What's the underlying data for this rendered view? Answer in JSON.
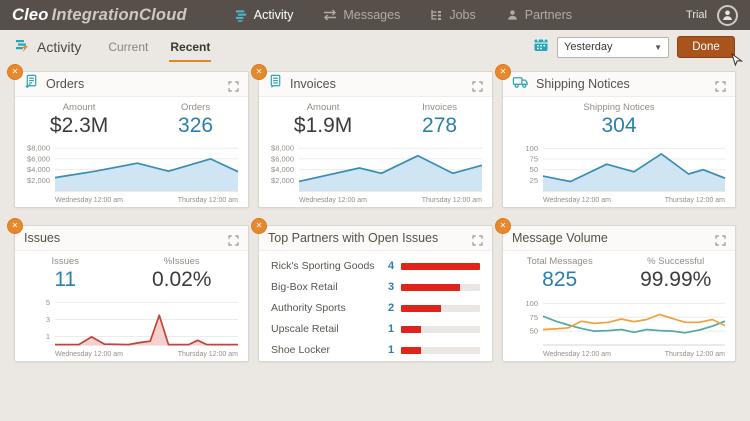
{
  "header": {
    "logo": {
      "brand": "Cleo",
      "product": "IntegrationCloud"
    },
    "nav": [
      {
        "label": "Activity",
        "icon": "activity-icon",
        "active": true
      },
      {
        "label": "Messages",
        "icon": "messages-icon",
        "active": false
      },
      {
        "label": "Jobs",
        "icon": "jobs-icon",
        "active": false
      },
      {
        "label": "Partners",
        "icon": "partners-icon",
        "active": false
      }
    ],
    "trial_label": "Trial"
  },
  "toolbar": {
    "title": "Activity",
    "tabs": [
      {
        "label": "Current",
        "active": false
      },
      {
        "label": "Recent",
        "active": true
      }
    ],
    "date_select": {
      "value": "Yesterday"
    },
    "done_label": "Done"
  },
  "colors": {
    "accent_orange": "#e8882d",
    "done_button": "#a9541c",
    "stat_blue": "#2b7fad",
    "chart_blue": "#3a8cb4",
    "chart_blue_fill": "#cfe5f3",
    "chart_red": "#c0443a",
    "chart_red_fill": "#f6d0cc",
    "bar_red": "#e02419",
    "line_teal": "#52aaa4",
    "line_orange": "#eba23f"
  },
  "cards": [
    {
      "title": "Orders",
      "icon": "orders-icon",
      "stats": [
        {
          "label": "Amount",
          "value": "$2.3M",
          "style": "dark"
        },
        {
          "label": "Orders",
          "value": "326",
          "style": "blue"
        }
      ]
    },
    {
      "title": "Invoices",
      "icon": "invoices-icon",
      "stats": [
        {
          "label": "Amount",
          "value": "$1.9M",
          "style": "dark"
        },
        {
          "label": "Invoices",
          "value": "278",
          "style": "blue"
        }
      ]
    },
    {
      "title": "Shipping Notices",
      "icon": "truck-icon",
      "stats": [
        {
          "label": "Shipping Notices",
          "value": "304",
          "style": "blue"
        }
      ]
    },
    {
      "title": "Issues",
      "stats": [
        {
          "label": "Issues",
          "value": "11",
          "style": "blue"
        },
        {
          "label": "%Issues",
          "value": "0.02%",
          "style": "dark"
        }
      ]
    },
    {
      "title": "Top Partners with Open Issues"
    },
    {
      "title": "Message Volume",
      "stats": [
        {
          "label": "Total Messages",
          "value": "825",
          "style": "blue"
        },
        {
          "label": "% Successful",
          "value": "99.99%",
          "style": "dark"
        }
      ]
    }
  ],
  "chart_data": [
    {
      "id": "orders-trend",
      "type": "area",
      "title": "Orders",
      "ylim": [
        0,
        8600
      ],
      "yticks": [
        {
          "v": 2000,
          "label": "$2,000"
        },
        {
          "v": 4000,
          "label": "$4,000"
        },
        {
          "v": 6000,
          "label": "$6,000"
        },
        {
          "v": 8000,
          "label": "$8,000"
        }
      ],
      "xlabels": [
        "Wednesday 12:00 am",
        "Thursday 12:00 am"
      ],
      "series": [
        {
          "color": "#3a8cb4",
          "fill": "#cfe5f3",
          "points": [
            [
              0,
              2500
            ],
            [
              0.22,
              3700
            ],
            [
              0.45,
              5200
            ],
            [
              0.62,
              3700
            ],
            [
              0.85,
              6000
            ],
            [
              1,
              3600
            ]
          ]
        }
      ]
    },
    {
      "id": "invoices-trend",
      "type": "area",
      "title": "Invoices",
      "ylim": [
        0,
        8600
      ],
      "yticks": [
        {
          "v": 2000,
          "label": "$2,000"
        },
        {
          "v": 4000,
          "label": "$4,000"
        },
        {
          "v": 6000,
          "label": "$6,000"
        },
        {
          "v": 8000,
          "label": "$8,000"
        }
      ],
      "xlabels": [
        "Wednesday 12:00 am",
        "Thursday 12:00 am"
      ],
      "series": [
        {
          "color": "#3a8cb4",
          "fill": "#cfe5f3",
          "points": [
            [
              0,
              1800
            ],
            [
              0.33,
              4300
            ],
            [
              0.45,
              3300
            ],
            [
              0.65,
              6600
            ],
            [
              0.84,
              3300
            ],
            [
              1,
              4800
            ]
          ]
        }
      ]
    },
    {
      "id": "shipping-trend",
      "type": "area",
      "title": "Shipping Notices",
      "ylim": [
        0,
        108
      ],
      "yticks": [
        {
          "v": 25,
          "label": "25"
        },
        {
          "v": 50,
          "label": "50"
        },
        {
          "v": 75,
          "label": "75"
        },
        {
          "v": 100,
          "label": "100"
        }
      ],
      "xlabels": [
        "Wednesday 12:00 am",
        "Thursday 12:00 am"
      ],
      "series": [
        {
          "color": "#3a8cb4",
          "fill": "#cfe5f3",
          "points": [
            [
              0,
              35
            ],
            [
              0.15,
              22
            ],
            [
              0.35,
              63
            ],
            [
              0.5,
              45
            ],
            [
              0.65,
              87
            ],
            [
              0.8,
              40
            ],
            [
              0.88,
              50
            ],
            [
              1,
              30
            ]
          ]
        }
      ]
    },
    {
      "id": "issues-trend",
      "type": "area",
      "title": "Issues",
      "ylim": [
        0,
        5.4
      ],
      "yticks": [
        {
          "v": 1,
          "label": "1"
        },
        {
          "v": 3,
          "label": "3"
        },
        {
          "v": 5,
          "label": "5"
        }
      ],
      "xlabels": [
        "Wednesday 12:00 am",
        "Thursday 12:00 am"
      ],
      "series": [
        {
          "color": "#c0443a",
          "fill": "#f6d0cc",
          "points": [
            [
              0,
              0.05
            ],
            [
              0.13,
              0.05
            ],
            [
              0.2,
              0.95
            ],
            [
              0.27,
              0.1
            ],
            [
              0.4,
              0.05
            ],
            [
              0.47,
              0.3
            ],
            [
              0.52,
              0.45
            ],
            [
              0.57,
              3.5
            ],
            [
              0.62,
              0.05
            ],
            [
              0.73,
              0.05
            ],
            [
              0.78,
              0.55
            ],
            [
              0.83,
              0.05
            ],
            [
              1,
              0.05
            ]
          ]
        }
      ]
    },
    {
      "id": "top-partners",
      "type": "bar",
      "title": "Top Partners with Open Issues",
      "categories": [
        "Rick's Sporting Goods",
        "Big-Box Retail",
        "Authority Sports",
        "Upscale Retail",
        "Shoe Locker"
      ],
      "values": [
        4,
        3,
        2,
        1,
        1
      ],
      "max": 4,
      "bar_color": "#e02419",
      "track_color": "#e9e6e3",
      "value_color": "#2b7fad"
    },
    {
      "id": "message-volume",
      "type": "line",
      "title": "Message Volume",
      "ylim": [
        25,
        108
      ],
      "yticks": [
        {
          "v": 50,
          "label": "50"
        },
        {
          "v": 75,
          "label": "75"
        },
        {
          "v": 100,
          "label": "100"
        }
      ],
      "xlabels": [
        "Wednesday 12:00 am",
        "Thursday 12:00 am"
      ],
      "series": [
        {
          "color": "#52aaa4",
          "points": [
            [
              0,
              77
            ],
            [
              0.07,
              68
            ],
            [
              0.14,
              61
            ],
            [
              0.21,
              55
            ],
            [
              0.28,
              50
            ],
            [
              0.36,
              51
            ],
            [
              0.43,
              53
            ],
            [
              0.5,
              48
            ],
            [
              0.57,
              53
            ],
            [
              0.64,
              51
            ],
            [
              0.71,
              50
            ],
            [
              0.78,
              47
            ],
            [
              0.86,
              52
            ],
            [
              0.93,
              59
            ],
            [
              1,
              68
            ]
          ]
        },
        {
          "color": "#eba23f",
          "points": [
            [
              0,
              53
            ],
            [
              0.07,
              54
            ],
            [
              0.14,
              56
            ],
            [
              0.21,
              68
            ],
            [
              0.28,
              64
            ],
            [
              0.36,
              66
            ],
            [
              0.43,
              72
            ],
            [
              0.5,
              67
            ],
            [
              0.57,
              71
            ],
            [
              0.64,
              80
            ],
            [
              0.71,
              73
            ],
            [
              0.78,
              66
            ],
            [
              0.86,
              66
            ],
            [
              0.93,
              71
            ],
            [
              1,
              60
            ]
          ]
        }
      ]
    }
  ]
}
